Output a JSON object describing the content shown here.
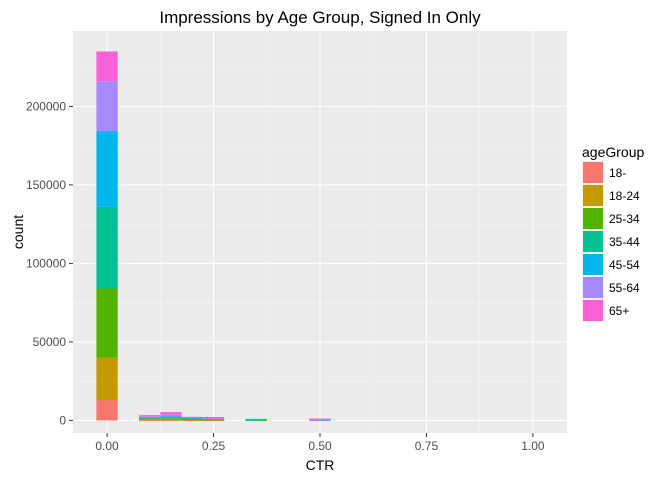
{
  "chart_data": {
    "type": "bar",
    "subtype": "stacked-histogram",
    "title": "Impressions by Age Group, Signed In Only",
    "xlabel": "CTR",
    "ylabel": "count",
    "xlim": [
      -0.08,
      1.08
    ],
    "ylim": [
      -8000,
      248000
    ],
    "x_ticks": [
      0.0,
      0.25,
      0.5,
      0.75,
      1.0
    ],
    "x_tick_labels": [
      "0.00",
      "0.25",
      "0.50",
      "0.75",
      "1.00"
    ],
    "y_ticks": [
      0,
      50000,
      100000,
      150000,
      200000
    ],
    "y_tick_labels": [
      "0",
      "50000",
      "100000",
      "150000",
      "200000"
    ],
    "grid": true,
    "legend_title": "ageGroup",
    "legend_position": "right",
    "bin_width": 0.05,
    "bins": [
      0.0,
      0.1,
      0.15,
      0.2,
      0.25,
      0.35,
      0.5
    ],
    "series": [
      {
        "name": "18-",
        "color": "#F8766D",
        "values": [
          13000,
          200,
          200,
          100,
          100,
          0,
          0
        ]
      },
      {
        "name": "18-24",
        "color": "#C49A00",
        "values": [
          27000,
          300,
          300,
          200,
          100,
          0,
          0
        ]
      },
      {
        "name": "25-34",
        "color": "#53B400",
        "values": [
          44000,
          700,
          900,
          600,
          300,
          200,
          0
        ]
      },
      {
        "name": "35-44",
        "color": "#00C094",
        "values": [
          52000,
          500,
          700,
          500,
          300,
          200,
          0
        ]
      },
      {
        "name": "45-54",
        "color": "#00B6EB",
        "values": [
          48000,
          400,
          600,
          300,
          200,
          600,
          200
        ]
      },
      {
        "name": "55-64",
        "color": "#A58AFF",
        "values": [
          32000,
          500,
          900,
          300,
          200,
          0,
          100
        ]
      },
      {
        "name": "65+",
        "color": "#FB61D7",
        "values": [
          19000,
          800,
          1700,
          300,
          1000,
          0,
          900
        ]
      }
    ]
  }
}
